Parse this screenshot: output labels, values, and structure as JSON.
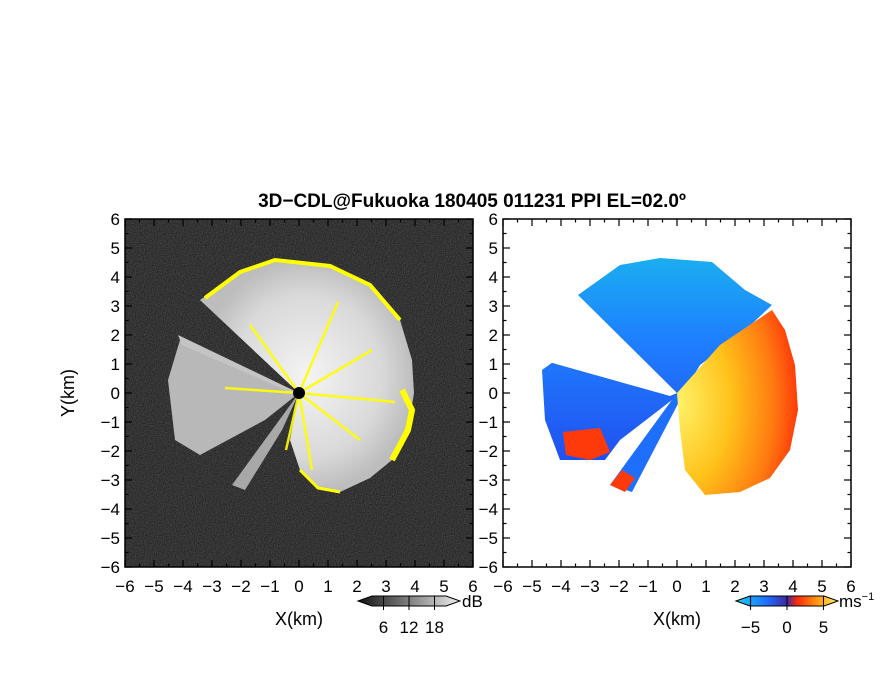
{
  "title": "3D−CDL@Fukuoka 180405 011231 PPI EL=02.0º",
  "chart_data": [
    {
      "type": "heatmap",
      "panel": "left",
      "description_field": "reflectivity-like intensity PPI",
      "xlabel": "X(km)",
      "ylabel": "Y(km)",
      "xlim": [
        -6,
        6
      ],
      "ylim": [
        -6,
        6
      ],
      "x_ticks": [
        "−6",
        "−5",
        "−4",
        "−3",
        "−2",
        "−1",
        "0",
        "1",
        "2",
        "3",
        "4",
        "5",
        "6"
      ],
      "y_ticks": [
        "6",
        "5",
        "4",
        "3",
        "2",
        "1",
        "0",
        "−1",
        "−2",
        "−3",
        "−4",
        "−5",
        "−6"
      ],
      "background_color": "#111111",
      "highlight_color": "#ffff00",
      "colorbar": {
        "unit": "dB",
        "ticks": [
          "6",
          "12",
          "18"
        ],
        "range": [
          0,
          24
        ]
      }
    },
    {
      "type": "heatmap",
      "panel": "right",
      "description_field": "radial velocity PPI",
      "xlabel": "X(km)",
      "ylabel": "",
      "xlim": [
        -6,
        6
      ],
      "ylim": [
        -6,
        6
      ],
      "x_ticks": [
        "−6",
        "−5",
        "−4",
        "−3",
        "−2",
        "−1",
        "0",
        "1",
        "2",
        "3",
        "4",
        "5",
        "6"
      ],
      "y_ticks": [
        "6",
        "5",
        "4",
        "3",
        "2",
        "1",
        "0",
        "−1",
        "−2",
        "−3",
        "−4",
        "−5",
        "−6"
      ],
      "colorbar": {
        "unit": "ms",
        "unit_exp": "−1",
        "ticks": [
          "−5",
          "0",
          "5"
        ],
        "range": [
          -7,
          7
        ]
      },
      "colors": {
        "negative": "#1f6fff",
        "negative_light": "#18b0f0",
        "positive": "#ff3a0a",
        "positive_light": "#ffd21a"
      }
    }
  ]
}
